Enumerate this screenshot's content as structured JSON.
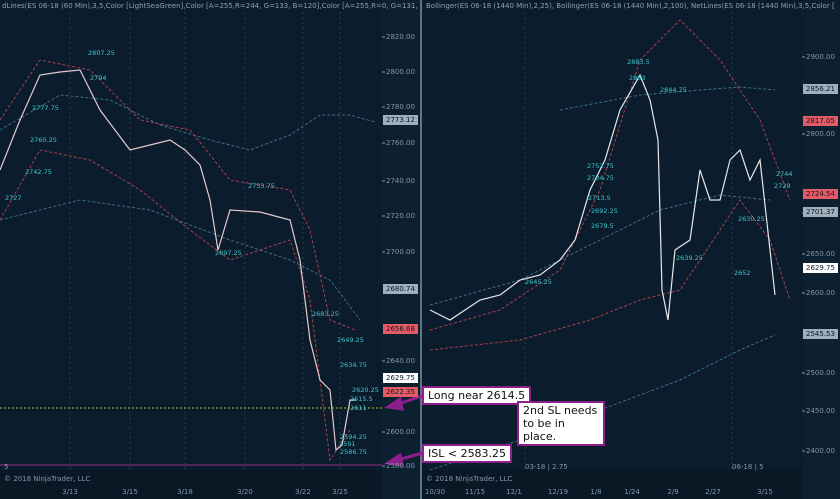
{
  "header": {
    "left": "dLines(ES 06-18 (60 Min),3,5,Color [LightSeaGreen],Color [A=255,R=244, G=133, B=120],Color [A=255,R=0, G=131,",
    "right": "Bollinger(ES 06-18 (1440 Min),2,25), Bollinger(ES 06-18 (1440 Min),2,100), NetLines(ES 06-18 (1440 Min),3,5,Color ["
  },
  "left_panel": {
    "y_axis": [
      "2820.00",
      "2800.00",
      "2780.00",
      "2760.00",
      "2740.00",
      "2720.00",
      "2700.00",
      "2640.00",
      "2600.00",
      "2580.00"
    ],
    "price_tags": [
      "2773.12",
      "2680.74",
      "2656.68",
      "2629.75",
      "2622.35"
    ],
    "x_axis": [
      "3/13",
      "3/15",
      "3/18",
      "3/20",
      "3/22",
      "3/25"
    ],
    "level_labels": [
      "2807.25",
      "2794",
      "2777.75",
      "2760.25",
      "2742.75",
      "2727",
      "2733.75",
      "2697.25",
      "2683.25",
      "2649.25",
      "2634.75",
      "2620.25",
      "2615.5",
      "2611",
      "2594.25",
      "2591",
      "2586.75"
    ]
  },
  "right_panel": {
    "y_axis": [
      "2900.00",
      "2800.00",
      "2700.00",
      "2650.00",
      "2600.00",
      "2500.00",
      "2450.00",
      "2400.00"
    ],
    "price_tags": [
      "2856.21",
      "2817.05",
      "2724.54",
      "2701.37",
      "2629.75",
      "2545.53"
    ],
    "x_axis": [
      "10/30",
      "11/15",
      "12/1",
      "12/19",
      "1/8",
      "1/24",
      "2/9",
      "2/27",
      "3/15"
    ],
    "level_labels": [
      "2883.5",
      "2863",
      "2844.75",
      "2752.75",
      "2734.75",
      "2713.5",
      "2692.25",
      "2679.5",
      "2645.25",
      "2639.25",
      "2652",
      "2630.25",
      "2744",
      "2729"
    ]
  },
  "footer": {
    "left_label": "5",
    "left_copyright": "© 2018 NinjaTrader, LLC",
    "right_label_1": "03-18 | 2.75",
    "right_label_2": "06-18 | 5",
    "right_copyright": "© 2018 NinjaTrader, LLC"
  },
  "annotations": {
    "long": "Long near 2614.5",
    "second_sl": "2nd SL needs to be in place.",
    "isl": "ISL < 2583.25"
  }
}
